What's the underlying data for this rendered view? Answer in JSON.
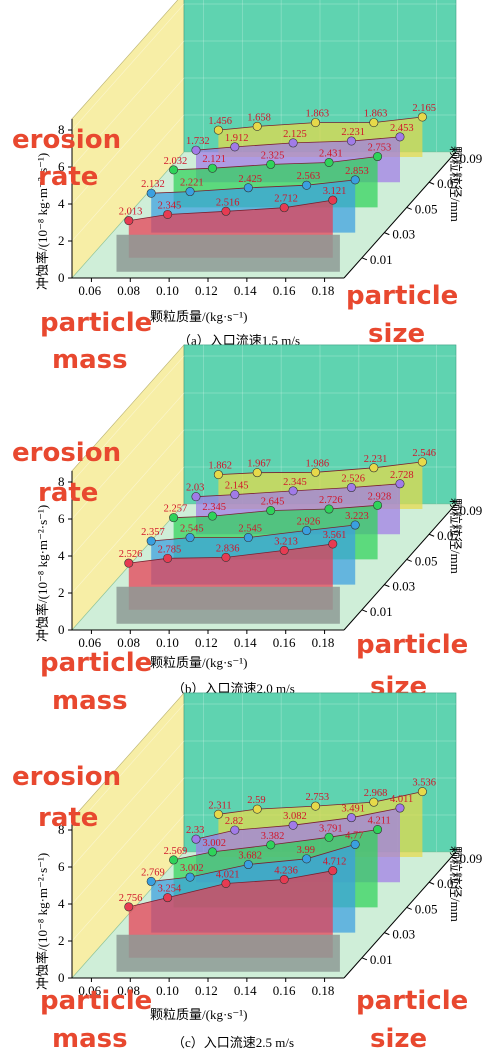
{
  "colors": {
    "back_wall": "#5fd3b0",
    "side_wall": "#f7eea6",
    "floor": "#cfeed8",
    "bottom_box": "#8d9a95",
    "series": [
      "#e63b52",
      "#3aa0e0",
      "#2fd35a",
      "#a17be8",
      "#e6d94a"
    ],
    "overlay_text": "#e8482f",
    "label_text": "#d0162b"
  },
  "axes": {
    "ylabel": "冲蚀率/(10⁻⁸ kg·m⁻²·s⁻¹)",
    "xlabel": "颗粒质量/(kg·s⁻¹)",
    "zlabel": "颗粒粒径/mm",
    "x_ticks": [
      "0.06",
      "0.08",
      "0.10",
      "0.12",
      "0.14",
      "0.16",
      "0.18"
    ],
    "y_ticks": [
      "0",
      "2",
      "4",
      "6",
      "8"
    ],
    "z_ticks": [
      "0.01",
      "0.03",
      "0.05",
      "0.07",
      "0.09"
    ]
  },
  "overlay": {
    "erosion": "erosion",
    "rate": "rate",
    "particle": "particle",
    "mass": "mass",
    "size": "size"
  },
  "chart_data": [
    {
      "type": "3d-line",
      "caption": "（a）入口流速1.5 m/s",
      "x_ticks": [
        "0.06",
        "0.08",
        "0.10",
        "0.12",
        "0.14",
        "0.16",
        "0.18"
      ],
      "z_levels": [
        "0.01",
        "0.03",
        "0.05",
        "0.07",
        "0.09"
      ],
      "ylim": [
        0,
        8
      ],
      "series": [
        {
          "name": "0.01",
          "values": [
            2.013,
            2.345,
            2.516,
            2.712,
            3.121
          ]
        },
        {
          "name": "0.03",
          "values": [
            2.132,
            2.221,
            2.425,
            2.563,
            2.853
          ]
        },
        {
          "name": "0.05",
          "values": [
            2.032,
            2.121,
            2.325,
            2.431,
            2.753
          ]
        },
        {
          "name": "0.07",
          "values": [
            1.732,
            1.912,
            2.125,
            2.231,
            2.453
          ]
        },
        {
          "name": "0.09",
          "values": [
            1.456,
            1.658,
            1.863,
            1.863,
            2.165
          ]
        }
      ]
    },
    {
      "type": "3d-line",
      "caption": "（b）入口流速2.0 m/s",
      "x_ticks": [
        "0.06",
        "0.08",
        "0.10",
        "0.12",
        "0.14",
        "0.16",
        "0.18"
      ],
      "z_levels": [
        "0.01",
        "0.03",
        "0.05",
        "0.07",
        "0.09"
      ],
      "ylim": [
        0,
        8
      ],
      "series": [
        {
          "name": "0.01",
          "values": [
            2.526,
            2.785,
            2.836,
            3.213,
            3.561
          ]
        },
        {
          "name": "0.03",
          "values": [
            2.357,
            2.545,
            2.545,
            2.926,
            3.223
          ]
        },
        {
          "name": "0.05",
          "values": [
            2.257,
            2.345,
            2.645,
            2.726,
            2.928
          ]
        },
        {
          "name": "0.07",
          "values": [
            2.03,
            2.145,
            2.345,
            2.526,
            2.728
          ]
        },
        {
          "name": "0.09",
          "values": [
            1.862,
            1.967,
            1.986,
            2.231,
            2.546
          ]
        }
      ]
    },
    {
      "type": "3d-line",
      "caption": "（c）入口流速2.5 m/s",
      "x_ticks": [
        "0.06",
        "0.08",
        "0.10",
        "0.12",
        "0.14",
        "0.16",
        "0.18"
      ],
      "z_levels": [
        "0.01",
        "0.03",
        "0.05",
        "0.07",
        "0.09"
      ],
      "ylim": [
        0,
        8
      ],
      "series": [
        {
          "name": "0.01",
          "values": [
            2.756,
            3.254,
            4.021,
            4.236,
            4.712
          ]
        },
        {
          "name": "0.03",
          "values": [
            2.769,
            3.002,
            3.682,
            3.99,
            4.77
          ]
        },
        {
          "name": "0.05",
          "values": [
            2.569,
            3.002,
            3.382,
            3.791,
            4.211
          ]
        },
        {
          "name": "0.07",
          "values": [
            2.33,
            2.82,
            3.082,
            3.491,
            4.011
          ]
        },
        {
          "name": "0.09",
          "values": [
            2.311,
            2.59,
            2.753,
            2.968,
            3.536
          ]
        }
      ]
    }
  ]
}
